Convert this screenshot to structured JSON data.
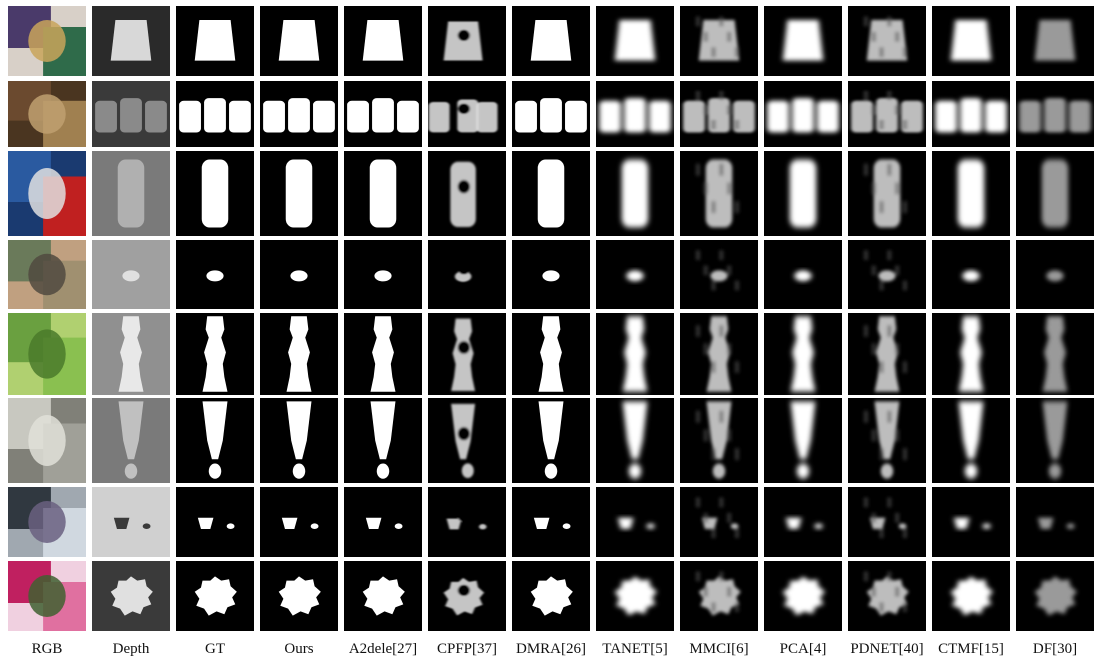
{
  "figure": {
    "columns": [
      {
        "key": "rgb",
        "label": "RGB",
        "kind": "rgb"
      },
      {
        "key": "depth",
        "label": "Depth",
        "kind": "depth"
      },
      {
        "key": "gt",
        "label": "GT",
        "kind": "map",
        "quality": "sharp"
      },
      {
        "key": "ours",
        "label": "Ours",
        "kind": "map",
        "quality": "sharp"
      },
      {
        "key": "a2dele",
        "label": "A2dele[27]",
        "kind": "map",
        "quality": "sharp"
      },
      {
        "key": "cpfp",
        "label": "CPFP[37]",
        "kind": "map",
        "quality": "broken"
      },
      {
        "key": "dmra",
        "label": "DMRA[26]",
        "kind": "map",
        "quality": "sharp"
      },
      {
        "key": "tanet",
        "label": "TANET[5]",
        "kind": "map",
        "quality": "blurry"
      },
      {
        "key": "mmci",
        "label": "MMCI[6]",
        "kind": "map",
        "quality": "noisy"
      },
      {
        "key": "pca",
        "label": "PCA[4]",
        "kind": "map",
        "quality": "blurry"
      },
      {
        "key": "pdnet",
        "label": "PDNET[40]",
        "kind": "map",
        "quality": "noisy"
      },
      {
        "key": "ctmf",
        "label": "CTMF[15]",
        "kind": "map",
        "quality": "blurry"
      },
      {
        "key": "df",
        "label": "DF[30]",
        "kind": "map",
        "quality": "dim"
      }
    ],
    "rows": [
      {
        "key": "row-bag",
        "subject": "bag",
        "rgb_colors": [
          "#4a3a6a",
          "#2f6b4a",
          "#c9a45a",
          "#d8d0c8"
        ],
        "depth_bg": "#2a2a2a",
        "depth_fg": "#d8d8d8"
      },
      {
        "key": "row-baskets",
        "subject": "baskets",
        "rgb_colors": [
          "#6b4a2f",
          "#a08050",
          "#c0a070",
          "#4a3520"
        ],
        "depth_bg": "#3a3a3a",
        "depth_fg": "#8a8a8a"
      },
      {
        "key": "row-can",
        "subject": "can",
        "rgb_colors": [
          "#2a5aa0",
          "#c02020",
          "#e0e0e0",
          "#1a3a70"
        ],
        "depth_bg": "#7a7a7a",
        "depth_fg": "#b0b0b0"
      },
      {
        "key": "row-small-object",
        "subject": "small",
        "rgb_colors": [
          "#6a7a5a",
          "#a09070",
          "#504a40",
          "#c0a080"
        ],
        "depth_bg": "#a0a0a0",
        "depth_fg": "#e0e0e0"
      },
      {
        "key": "row-toy",
        "subject": "toy",
        "rgb_colors": [
          "#6aa040",
          "#8ac050",
          "#4a7a2a",
          "#b0d070"
        ],
        "depth_bg": "#909090",
        "depth_fg": "#e8e8e8"
      },
      {
        "key": "row-glass",
        "subject": "glass",
        "rgb_colors": [
          "#c8c8c0",
          "#a0a098",
          "#e0e0d8",
          "#808078"
        ],
        "depth_bg": "#7a7a7a",
        "depth_fg": "#c0c0c0"
      },
      {
        "key": "row-bowl",
        "subject": "bowl",
        "rgb_colors": [
          "#303840",
          "#d0d8e0",
          "#6a6080",
          "#a0a8b0"
        ],
        "depth_bg": "#d0d0d0",
        "depth_fg": "#3a3a3a"
      },
      {
        "key": "row-flower",
        "subject": "flower",
        "rgb_colors": [
          "#c02060",
          "#e070a0",
          "#406030",
          "#f0d0e0"
        ],
        "depth_bg": "#3a3a3a",
        "depth_fg": "#e0e0e0"
      }
    ]
  }
}
